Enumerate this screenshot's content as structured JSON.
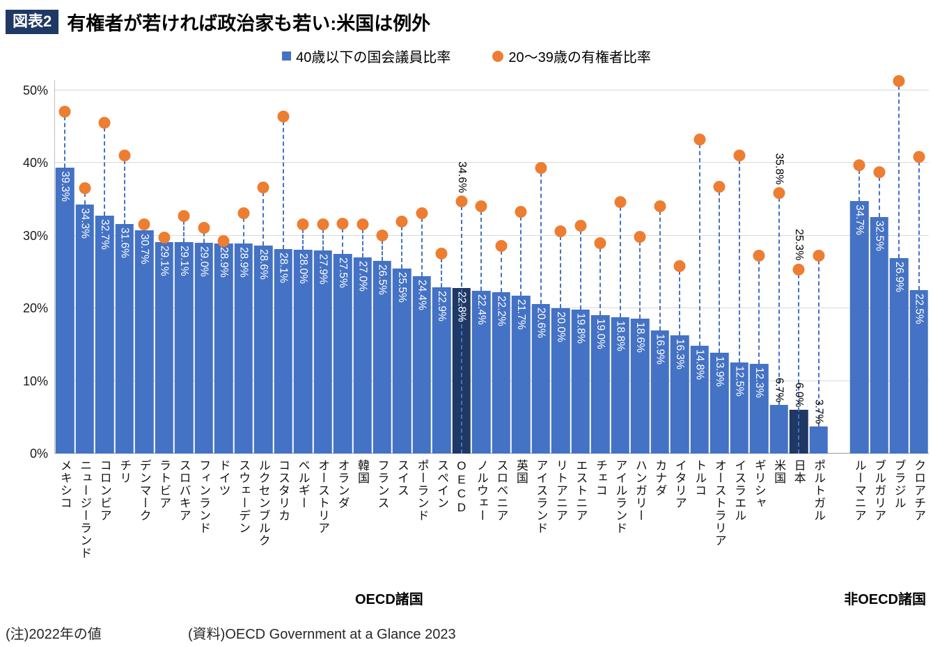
{
  "figure": {
    "tag": "図表2",
    "title": "有権者が若ければ政治家も若い:米国は例外"
  },
  "legend": {
    "bar_label": "40歳以下の国会議員比率",
    "dot_label": "20〜39歳の有権者比率"
  },
  "footer": {
    "note": "(注)2022年の値",
    "source": "(資料)OECD Government at a Glance 2023"
  },
  "chart_data": {
    "type": "bar",
    "title": "有権者が若ければ政治家も若い:米国は例外",
    "legend_position": "top",
    "grid": true,
    "ylim": [
      0,
      50
    ],
    "yticks": [
      0,
      10,
      20,
      30,
      40,
      50
    ],
    "bar_color": "#4472C4",
    "bar_color_dark": "#1F3864",
    "dot_color": "#ED7D31",
    "series": [
      {
        "name": "40歳以下の国会議員比率",
        "type": "bar"
      },
      {
        "name": "20〜39歳の有権者比率",
        "type": "dot"
      }
    ],
    "groups": [
      {
        "label": "OECD諸国",
        "items": [
          {
            "country": "メキシコ",
            "mp_under40_pct": 39.3,
            "voters_20_39_pct": 47.0
          },
          {
            "country": "ニュージーランド",
            "mp_under40_pct": 34.3,
            "voters_20_39_pct": 36.5
          },
          {
            "country": "コロンビア",
            "mp_under40_pct": 32.7,
            "voters_20_39_pct": 45.5
          },
          {
            "country": "チリ",
            "mp_under40_pct": 31.6,
            "voters_20_39_pct": 41.0
          },
          {
            "country": "デンマーク",
            "mp_under40_pct": 30.7,
            "voters_20_39_pct": 31.5
          },
          {
            "country": "ラトビア",
            "mp_under40_pct": 29.1,
            "voters_20_39_pct": 29.7
          },
          {
            "country": "スロバキア",
            "mp_under40_pct": 29.1,
            "voters_20_39_pct": 32.6
          },
          {
            "country": "フィンランド",
            "mp_under40_pct": 29.0,
            "voters_20_39_pct": 31.0
          },
          {
            "country": "ドイツ",
            "mp_under40_pct": 28.9,
            "voters_20_39_pct": 29.2
          },
          {
            "country": "スウェーデン",
            "mp_under40_pct": 28.9,
            "voters_20_39_pct": 33.0
          },
          {
            "country": "ルクセンブルク",
            "mp_under40_pct": 28.6,
            "voters_20_39_pct": 36.6
          },
          {
            "country": "コスタリカ",
            "mp_under40_pct": 28.1,
            "voters_20_39_pct": 46.3
          },
          {
            "country": "ベルギー",
            "mp_under40_pct": 28.0,
            "voters_20_39_pct": 31.5
          },
          {
            "country": "オーストリア",
            "mp_under40_pct": 27.9,
            "voters_20_39_pct": 31.5
          },
          {
            "country": "オランダ",
            "mp_under40_pct": 27.5,
            "voters_20_39_pct": 31.6
          },
          {
            "country": "韓国",
            "mp_under40_pct": 27.0,
            "voters_20_39_pct": 31.5
          },
          {
            "country": "フランス",
            "mp_under40_pct": 26.5,
            "voters_20_39_pct": 30.0
          },
          {
            "country": "スイス",
            "mp_under40_pct": 25.5,
            "voters_20_39_pct": 31.9
          },
          {
            "country": "ポーランド",
            "mp_under40_pct": 24.4,
            "voters_20_39_pct": 33.0
          },
          {
            "country": "スペイン",
            "mp_under40_pct": 22.9,
            "voters_20_39_pct": 27.5
          },
          {
            "country": "OECD",
            "mp_under40_pct": 22.8,
            "voters_20_39_pct": 34.6,
            "dark": true,
            "show_dot_label": true
          },
          {
            "country": "ノルウェー",
            "mp_under40_pct": 22.4,
            "voters_20_39_pct": 34.0
          },
          {
            "country": "スロベニア",
            "mp_under40_pct": 22.2,
            "voters_20_39_pct": 28.5
          },
          {
            "country": "英国",
            "mp_under40_pct": 21.7,
            "voters_20_39_pct": 33.2
          },
          {
            "country": "アイスランド",
            "mp_under40_pct": 20.6,
            "voters_20_39_pct": 39.2
          },
          {
            "country": "リトアニア",
            "mp_under40_pct": 20.0,
            "voters_20_39_pct": 30.5
          },
          {
            "country": "エストニア",
            "mp_under40_pct": 19.8,
            "voters_20_39_pct": 31.3
          },
          {
            "country": "チェコ",
            "mp_under40_pct": 19.0,
            "voters_20_39_pct": 28.9
          },
          {
            "country": "アイルランド",
            "mp_under40_pct": 18.8,
            "voters_20_39_pct": 34.5
          },
          {
            "country": "ハンガリー",
            "mp_under40_pct": 18.6,
            "voters_20_39_pct": 29.8
          },
          {
            "country": "カナダ",
            "mp_under40_pct": 16.9,
            "voters_20_39_pct": 34.0
          },
          {
            "country": "イタリア",
            "mp_under40_pct": 16.3,
            "voters_20_39_pct": 25.7
          },
          {
            "country": "トルコ",
            "mp_under40_pct": 14.8,
            "voters_20_39_pct": 43.2
          },
          {
            "country": "オーストラリア",
            "mp_under40_pct": 13.9,
            "voters_20_39_pct": 36.7
          },
          {
            "country": "イスラエル",
            "mp_under40_pct": 12.5,
            "voters_20_39_pct": 41.0
          },
          {
            "country": "ギリシャ",
            "mp_under40_pct": 12.3,
            "voters_20_39_pct": 27.2
          },
          {
            "country": "米国",
            "mp_under40_pct": 6.7,
            "voters_20_39_pct": 35.8,
            "show_dot_label": true
          },
          {
            "country": "日本",
            "mp_under40_pct": 6.0,
            "voters_20_39_pct": 25.3,
            "dark": true,
            "show_dot_label": true
          },
          {
            "country": "ポルトガル",
            "mp_under40_pct": 3.7,
            "voters_20_39_pct": 27.2
          }
        ]
      },
      {
        "label": "非OECD諸国",
        "items": [
          {
            "country": "ルーマニア",
            "mp_under40_pct": 34.7,
            "voters_20_39_pct": 39.6
          },
          {
            "country": "ブルガリア",
            "mp_under40_pct": 32.5,
            "voters_20_39_pct": 38.7
          },
          {
            "country": "ブラジル",
            "mp_under40_pct": 26.9,
            "voters_20_39_pct": 51.2
          },
          {
            "country": "クロアチア",
            "mp_under40_pct": 22.5,
            "voters_20_39_pct": 40.8
          }
        ]
      }
    ]
  }
}
